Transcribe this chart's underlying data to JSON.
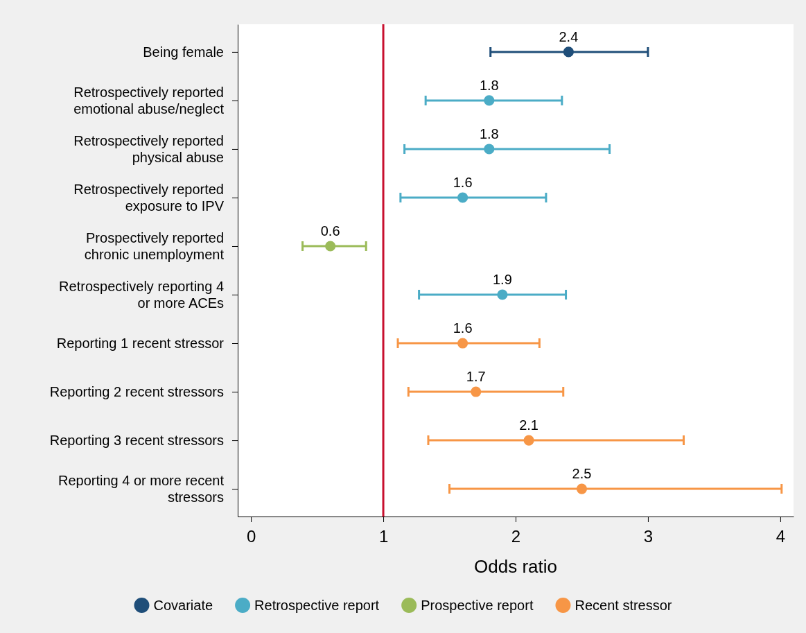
{
  "chart_data": {
    "type": "scatter",
    "orientation": "horizontal",
    "xlabel": "Odds ratio",
    "categories": [
      "Being female",
      "Retrospectively reported emotional abuse/neglect",
      "Retrospectively reported physical abuse",
      "Retrospectively reported exposure to IPV",
      "Prospectively reported chronic unemployment",
      "Retrospectively reporting 4 or more ACEs",
      "Reporting 1 recent stressor",
      "Reporting 2 recent stressors",
      "Reporting 3 recent stressors",
      "Reporting 4 or more recent stressors"
    ],
    "series": [
      {
        "name": "Covariate",
        "color": "#1f4e79",
        "values": [
          2.4,
          null,
          null,
          null,
          null,
          null,
          null,
          null,
          null,
          null
        ],
        "errors": [
          [
            1.81,
            3.0
          ],
          null,
          null,
          null,
          null,
          null,
          null,
          null,
          null,
          null
        ],
        "value_labels": [
          "2.4",
          null,
          null,
          null,
          null,
          null,
          null,
          null,
          null,
          null
        ]
      },
      {
        "name": "Retrospective report",
        "color": "#4bacc6",
        "values": [
          null,
          1.8,
          1.8,
          1.6,
          null,
          1.9,
          null,
          null,
          null,
          null
        ],
        "errors": [
          null,
          [
            1.32,
            2.35
          ],
          [
            1.16,
            2.71
          ],
          [
            1.13,
            2.23
          ],
          null,
          [
            1.27,
            2.38
          ],
          null,
          null,
          null,
          null
        ],
        "value_labels": [
          null,
          "1.8",
          "1.8",
          "1.6",
          null,
          "1.9",
          null,
          null,
          null,
          null
        ]
      },
      {
        "name": "Prospective report",
        "color": "#9bbb59",
        "values": [
          null,
          null,
          null,
          null,
          0.6,
          null,
          null,
          null,
          null,
          null
        ],
        "errors": [
          null,
          null,
          null,
          null,
          [
            0.39,
            0.87
          ],
          null,
          null,
          null,
          null,
          null
        ],
        "value_labels": [
          null,
          null,
          null,
          null,
          "0.6",
          null,
          null,
          null,
          null,
          null
        ]
      },
      {
        "name": "Recent stressor",
        "color": "#f79646",
        "values": [
          null,
          null,
          null,
          null,
          null,
          null,
          1.6,
          1.7,
          2.1,
          2.5
        ],
        "errors": [
          null,
          null,
          null,
          null,
          null,
          null,
          [
            1.11,
            2.18
          ],
          [
            1.19,
            2.36
          ],
          [
            1.34,
            3.27
          ],
          [
            1.5,
            4.01
          ]
        ],
        "value_labels": [
          null,
          null,
          null,
          null,
          null,
          null,
          "1.6",
          "1.7",
          "2.1",
          "2.5"
        ]
      }
    ],
    "xlim": [
      -0.1,
      4.1
    ],
    "xticks": [
      0,
      1,
      2,
      3,
      4
    ],
    "ref_lines": [
      {
        "axis": "x",
        "value": 1,
        "color": "#c8102e"
      }
    ],
    "marker": "circle",
    "legend": "bottom",
    "grid": false
  }
}
